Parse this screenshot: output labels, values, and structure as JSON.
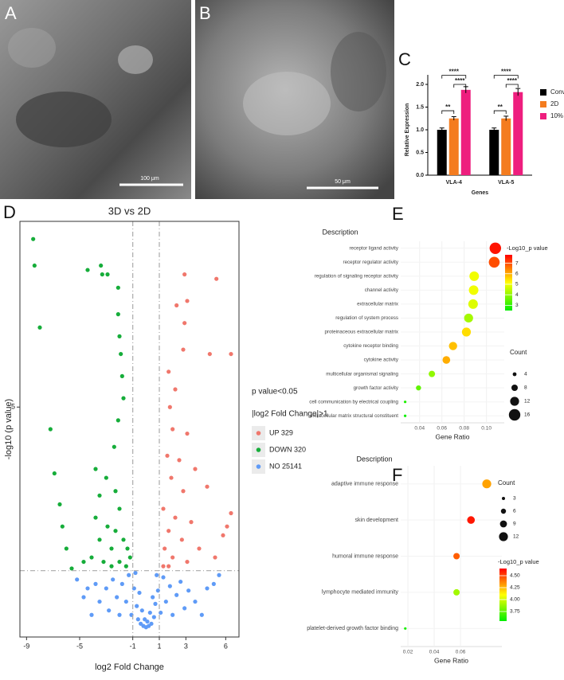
{
  "panels": [
    "A",
    "B",
    "C",
    "D",
    "E",
    "F"
  ],
  "images": [
    {
      "scale_bar": "100 μm"
    },
    {
      "scale_bar": "50 μm"
    }
  ],
  "chart_data": [
    {
      "type": "bar",
      "categories": [
        "VLA-4",
        "VLA-5"
      ],
      "series": [
        {
          "name": "Conv",
          "color": "#000000",
          "values": [
            1.0,
            1.0
          ],
          "errors": [
            0.04,
            0.04
          ]
        },
        {
          "name": "2D",
          "color": "#f47c1f",
          "values": [
            1.25,
            1.25
          ],
          "errors": [
            0.04,
            0.05
          ]
        },
        {
          "name": "10%",
          "color": "#ee1e7e",
          "values": [
            1.88,
            1.83
          ],
          "errors": [
            0.07,
            0.08
          ]
        }
      ],
      "ylim": [
        0,
        2
      ],
      "yticks": [
        {
          "value": 0,
          "label": "0.0"
        },
        {
          "value": 0.5,
          "label": "0.5"
        },
        {
          "value": 1,
          "label": "1.0"
        },
        {
          "value": 1.5,
          "label": "1.5"
        },
        {
          "value": 2,
          "label": "2.0"
        }
      ],
      "ylabel": "Relative Expression",
      "xlabel": "Genes",
      "annotations": [
        "**",
        "****",
        "****",
        "**",
        "****",
        "****"
      ]
    },
    {
      "type": "scatter",
      "title": "3D vs 2D",
      "xlabel": "log2 Fold Change",
      "ylabel": "-log10 (p value)",
      "xlim": [
        -9.5,
        7
      ],
      "ylim": [
        -0.2,
        9.2
      ],
      "xticks": [
        -9,
        -5,
        -1,
        1,
        3,
        6
      ],
      "yticks": [
        5
      ],
      "thresholds": {
        "x": [
          -1,
          1
        ],
        "y": 1.3
      },
      "legend_title": [
        "p value<0.05",
        "|log2 Fold Change|>1"
      ],
      "series": [
        {
          "name": "UP 329",
          "color": "#f0776c",
          "x": [
            2.9,
            5.3,
            2.3,
            3.1,
            2.9,
            2.8,
            6.4,
            4.8,
            1.7,
            2.2,
            1.8,
            2.0,
            3.1,
            1.6,
            2.5,
            3.7,
            4.6,
            1.9,
            2.8,
            6.4,
            6.1,
            5.8,
            5.2,
            1.3,
            2.2,
            3.4,
            1.7,
            2.7,
            4.0,
            1.4,
            2.0,
            3.1,
            1.3,
            1.7
          ],
          "y": [
            8.0,
            7.9,
            7.3,
            7.4,
            6.9,
            6.3,
            6.2,
            6.2,
            5.8,
            5.4,
            5.0,
            4.5,
            4.4,
            3.9,
            3.8,
            3.6,
            3.2,
            3.4,
            3.1,
            2.6,
            2.3,
            2.1,
            1.6,
            2.7,
            2.5,
            2.4,
            2.2,
            2.0,
            1.8,
            1.8,
            1.6,
            1.5,
            1.4,
            1.4
          ]
        },
        {
          "name": "DOWN 320",
          "color": "#16ad3a",
          "x": [
            -8.5,
            -8.4,
            -8.0,
            -7.2,
            -6.9,
            -6.5,
            -6.3,
            -6.0,
            -5.6,
            -4.4,
            -3.4,
            -2.9,
            -3.3,
            -2.1,
            -2.1,
            -2.0,
            -1.9,
            -1.8,
            -1.7,
            -2.1,
            -2.4,
            -3.8,
            -3.0,
            -2.3,
            -3.5,
            -2.0,
            -3.8,
            -2.9,
            -2.3,
            -1.7,
            -3.5,
            -2.6,
            -1.4,
            -4.1,
            -3.2,
            -2.0,
            -1.2,
            -4.7,
            -2.6,
            -1.5
          ],
          "y": [
            8.8,
            8.2,
            6.8,
            4.5,
            3.5,
            2.8,
            2.3,
            1.8,
            1.35,
            8.1,
            8.2,
            8.0,
            8.0,
            7.7,
            7.1,
            6.6,
            6.2,
            5.7,
            5.2,
            4.7,
            4.1,
            3.6,
            3.4,
            3.1,
            3.0,
            2.7,
            2.5,
            2.3,
            2.2,
            2.0,
            2.0,
            1.8,
            1.8,
            1.6,
            1.5,
            1.5,
            1.6,
            1.5,
            1.4,
            1.4
          ]
        },
        {
          "name": "NO 25141",
          "color": "#5f9bf7",
          "x": [
            -5.2,
            -4.7,
            -4.1,
            -4.4,
            -3.8,
            -3.5,
            -3.0,
            -2.8,
            -2.5,
            -2.2,
            -2.0,
            -1.8,
            -1.5,
            -1.3,
            -1.1,
            -0.9,
            -0.8,
            -0.7,
            -0.6,
            -0.5,
            -0.4,
            -0.3,
            -0.2,
            -0.1,
            0,
            0.1,
            0.2,
            0.3,
            0.4,
            0.5,
            0.6,
            0.7,
            0.8,
            0.9,
            1.1,
            1.3,
            1.5,
            1.8,
            2.0,
            2.3,
            2.6,
            2.9,
            3.2,
            3.7,
            4.2,
            4.6,
            5.1,
            5.5
          ],
          "y": [
            1.1,
            0.7,
            0.3,
            0.9,
            1.0,
            0.6,
            0.9,
            0.4,
            1.1,
            0.7,
            0.3,
            1.0,
            0.6,
            1.2,
            0.3,
            0.9,
            1.25,
            0.5,
            0.2,
            0.8,
            0.1,
            0.4,
            0.05,
            0.2,
            0.02,
            0.15,
            0.05,
            0.35,
            0.1,
            0.7,
            0.25,
            0.55,
            1.2,
            0.85,
            0.35,
            1.15,
            0.6,
            0.95,
            0.3,
            0.75,
            1.05,
            0.45,
            0.85,
            0.6,
            0.3,
            0.9,
            1.0,
            1.2
          ]
        }
      ]
    },
    {
      "type": "dot",
      "title": "Description",
      "categories": [
        "receptor ligand activity",
        "receptor regulator activity",
        "regulation of signaling receptor activity",
        "channel activity",
        "extracellular matrix",
        "regulation of system process",
        "proteinaceous extracellular matrix",
        "cytokine receptor binding",
        "cytokine activity",
        "multicellular organismal signaling",
        "growth factor activity",
        "cell communication by electrical coupling",
        "extracellular matrix structural constituent"
      ],
      "values": [
        0.108,
        0.107,
        0.089,
        0.0885,
        0.088,
        0.084,
        0.082,
        0.07,
        0.064,
        0.051,
        0.039,
        0.027,
        0.027
      ],
      "counts": [
        16,
        15,
        13,
        13,
        13,
        12,
        12,
        11,
        10,
        8,
        6,
        2,
        2
      ],
      "color_values": [
        7.6,
        7.0,
        5.0,
        5.0,
        4.8,
        4.2,
        5.5,
        5.8,
        6.0,
        4.0,
        3.5,
        2.8,
        2.6
      ],
      "xlim": [
        0.023,
        0.116
      ],
      "xticks": [
        0.04,
        0.06,
        0.08,
        {
          "value": 0.1,
          "label": "0.10"
        }
      ],
      "xlabel": "Gene Ratio",
      "color_title": "-Log10_p value",
      "colorlim": [
        2.5,
        7.8
      ],
      "color_ticks": [
        3,
        4,
        5,
        6,
        7
      ],
      "colorscale": [
        "#00ee00",
        "#ffff00",
        "#ff0000"
      ],
      "size_title": "Count",
      "size_ticks": [
        4,
        8,
        12,
        16
      ]
    },
    {
      "type": "dot",
      "title": "Description",
      "categories": [
        "adaptive immune response",
        "skin development",
        "humoral immune response",
        "lymphocyte mediated immunity",
        "platelet-derived growth factor binding"
      ],
      "values": [
        0.08,
        0.068,
        0.057,
        0.057,
        0.018
      ],
      "counts": [
        12,
        10,
        8,
        8,
        2
      ],
      "color_values": [
        4.3,
        4.6,
        4.45,
        3.9,
        3.6
      ],
      "xlim": [
        0.0145,
        0.0915
      ],
      "xticks": [
        0.02,
        0.04,
        0.06
      ],
      "xlabel": "Gene Ratio",
      "color_title": "-Log10_p value",
      "colorlim": [
        3.55,
        4.65
      ],
      "color_ticks": [
        3.75,
        {
          "value": 4,
          "label": "4.00"
        },
        4.25,
        {
          "value": 4.5,
          "label": "4.50"
        }
      ],
      "colorscale": [
        "#00ee00",
        "#ffff00",
        "#ff0000"
      ],
      "size_title": "Count",
      "size_ticks": [
        3,
        6,
        9,
        12
      ]
    }
  ]
}
